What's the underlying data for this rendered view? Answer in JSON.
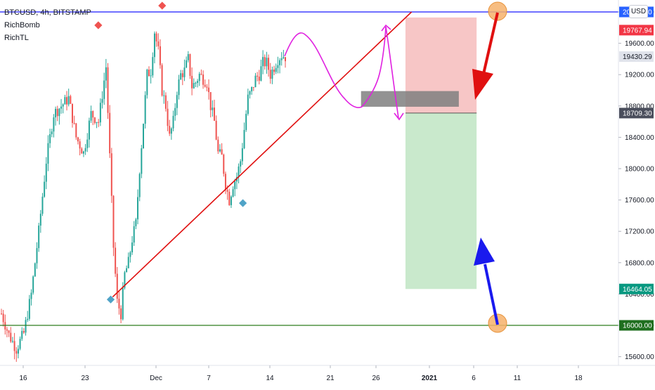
{
  "legend": {
    "symbol": "BTCUSD, 4h, BITSTAMP",
    "indicators": [
      "RichBomb",
      "RichTL"
    ]
  },
  "currency_button": "USD",
  "chart_data": {
    "type": "candlestick",
    "symbol": "BTCUSD",
    "timeframe": "4h",
    "exchange": "BITSTAMP",
    "ylim": [
      15450,
      20150
    ],
    "y_ticks": [
      "15600.00",
      "16000.00",
      "16400.00",
      "16800.00",
      "17200.00",
      "17600.00",
      "18000.00",
      "18400.00",
      "18800.00",
      "19200.00",
      "19600.00",
      "20000.00"
    ],
    "x_ticks": [
      "16",
      "23",
      "Dec",
      "7",
      "14",
      "21",
      "26",
      "2021",
      "6",
      "11",
      "18"
    ],
    "price_labels": [
      {
        "text": "20000.00",
        "value": 20000,
        "color": "#2962ff"
      },
      {
        "text": "19767.94",
        "value": 19767.94,
        "color": "#f23645"
      },
      {
        "text": "19430.29",
        "value": 19430.29,
        "color": "#e0e3eb"
      },
      {
        "text": "18709.30",
        "value": 18709.3,
        "color": "#4a4e5c"
      },
      {
        "text": "16464.05",
        "value": 16464.05,
        "color": "#089981"
      },
      {
        "text": "16000.00",
        "value": 16000,
        "color": "#1f6f1f"
      }
    ],
    "horizontal_lines": [
      {
        "value": 20000,
        "color": "#1a1aff"
      },
      {
        "value": 16000,
        "color": "#2f7d1f"
      }
    ],
    "trendline": {
      "x": [
        "Nov 26",
        "Dec 30"
      ],
      "y": [
        16330,
        20000
      ],
      "color": "#e01010"
    },
    "position": {
      "entry": 18709.3,
      "stop": 19767.94,
      "target": 16464.05,
      "x": [
        "Dec 29",
        "Jan 6"
      ]
    },
    "zone": {
      "x": [
        "Dec 24",
        "Jan 4"
      ],
      "y": [
        18790,
        18990
      ],
      "color": "#7f7f7f"
    },
    "candles": {
      "count": 153,
      "start_index": 0,
      "anchors": [
        [
          0,
          16150
        ],
        [
          4,
          15880
        ],
        [
          8,
          15700
        ],
        [
          12,
          15900
        ],
        [
          16,
          16400
        ],
        [
          20,
          17200
        ],
        [
          24,
          18100
        ],
        [
          28,
          18700
        ],
        [
          32,
          18800
        ],
        [
          36,
          18900
        ],
        [
          40,
          18400
        ],
        [
          44,
          18200
        ],
        [
          48,
          18700
        ],
        [
          52,
          18600
        ],
        [
          56,
          19300
        ],
        [
          60,
          17000
        ],
        [
          62,
          16300
        ],
        [
          64,
          16150
        ],
        [
          66,
          16650
        ],
        [
          68,
          16800
        ],
        [
          70,
          17100
        ],
        [
          72,
          17300
        ],
        [
          74,
          18000
        ],
        [
          76,
          18600
        ],
        [
          78,
          19200
        ],
        [
          80,
          19250
        ],
        [
          82,
          19750
        ],
        [
          84,
          19500
        ],
        [
          86,
          19000
        ],
        [
          88,
          18800
        ],
        [
          90,
          18400
        ],
        [
          92,
          18600
        ],
        [
          94,
          19000
        ],
        [
          96,
          19200
        ],
        [
          98,
          19250
        ],
        [
          100,
          19400
        ],
        [
          102,
          19050
        ],
        [
          104,
          19100
        ],
        [
          106,
          19200
        ],
        [
          108,
          19150
        ],
        [
          110,
          19100
        ],
        [
          112,
          18800
        ],
        [
          114,
          18600
        ],
        [
          116,
          18200
        ],
        [
          118,
          18150
        ],
        [
          120,
          17800
        ],
        [
          122,
          17600
        ],
        [
          124,
          17800
        ],
        [
          126,
          17900
        ],
        [
          128,
          18100
        ],
        [
          130,
          18500
        ],
        [
          132,
          18900
        ],
        [
          134,
          19000
        ],
        [
          136,
          19150
        ],
        [
          138,
          19200
        ],
        [
          140,
          19350
        ],
        [
          142,
          19350
        ],
        [
          144,
          19200
        ],
        [
          146,
          19300
        ],
        [
          148,
          19400
        ],
        [
          150,
          19450
        ],
        [
          152,
          19430
        ]
      ]
    },
    "markers": [
      {
        "shape": "diamond",
        "color": "#ef5350",
        "x": "Nov 25",
        "y": 19830
      },
      {
        "shape": "diamond",
        "color": "#ef5350",
        "x": "Dec 1",
        "y": 20080
      },
      {
        "shape": "diamond",
        "color": "#4fa3c7",
        "x": "Nov 26",
        "y": 16330
      },
      {
        "shape": "diamond",
        "color": "#4fa3c7",
        "x": "Dec 10",
        "y": 17560
      }
    ]
  }
}
